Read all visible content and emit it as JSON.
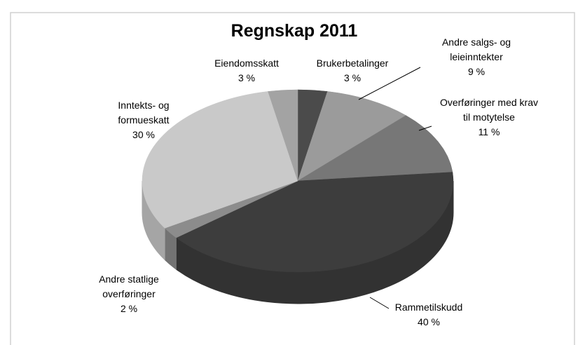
{
  "chart_data": {
    "type": "pie",
    "title": "Regnskap 2011",
    "categories": [
      "Brukerbetalinger",
      "Andre salgs- og leieinntekter",
      "Overføringer med krav til motytelse",
      "Rammetilskudd",
      "Andre statlige overføringer",
      "Inntekts- og formueskatt",
      "Eiendomsskatt"
    ],
    "values": [
      3,
      9,
      11,
      40,
      2,
      30,
      3
    ],
    "value_labels": [
      "3 %",
      "9 %",
      "11 %",
      "40 %",
      "2 %",
      "30 %",
      "3 %"
    ],
    "colors": [
      "#4b4b4b",
      "#9b9b9b",
      "#777777",
      "#3d3d3d",
      "#8c8c8c",
      "#c9c9c9",
      "#a3a3a3"
    ]
  }
}
